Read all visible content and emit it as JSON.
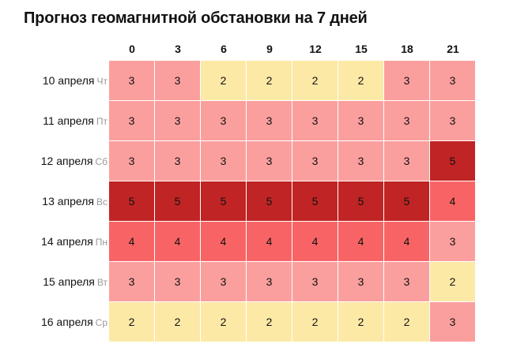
{
  "title": "Прогноз геомагнитной обстановки на 7 дней",
  "colors": {
    "2": "#fde9a6",
    "3": "#fb9f9e",
    "4": "#f86465",
    "5": "#c02424"
  },
  "chart_data": {
    "type": "heatmap",
    "title": "Прогноз геомагнитной обстановки на 7 дней",
    "x": [
      "0",
      "3",
      "6",
      "9",
      "12",
      "15",
      "18",
      "21"
    ],
    "y": [
      {
        "date": "10 апреля",
        "dow": "Чт"
      },
      {
        "date": "11 апреля",
        "dow": "Пт"
      },
      {
        "date": "12 апреля",
        "dow": "Сб"
      },
      {
        "date": "13 апреля",
        "dow": "Вс"
      },
      {
        "date": "14 апреля",
        "dow": "Пн"
      },
      {
        "date": "15 апреля",
        "dow": "Вт"
      },
      {
        "date": "16 апреля",
        "dow": "Ср"
      }
    ],
    "values": [
      [
        3,
        3,
        2,
        2,
        2,
        2,
        3,
        3
      ],
      [
        3,
        3,
        3,
        3,
        3,
        3,
        3,
        3
      ],
      [
        3,
        3,
        3,
        3,
        3,
        3,
        3,
        5
      ],
      [
        5,
        5,
        5,
        5,
        5,
        5,
        5,
        4
      ],
      [
        4,
        4,
        4,
        4,
        4,
        4,
        4,
        3
      ],
      [
        3,
        3,
        3,
        3,
        3,
        3,
        3,
        2
      ],
      [
        2,
        2,
        2,
        2,
        2,
        2,
        2,
        3
      ]
    ]
  }
}
